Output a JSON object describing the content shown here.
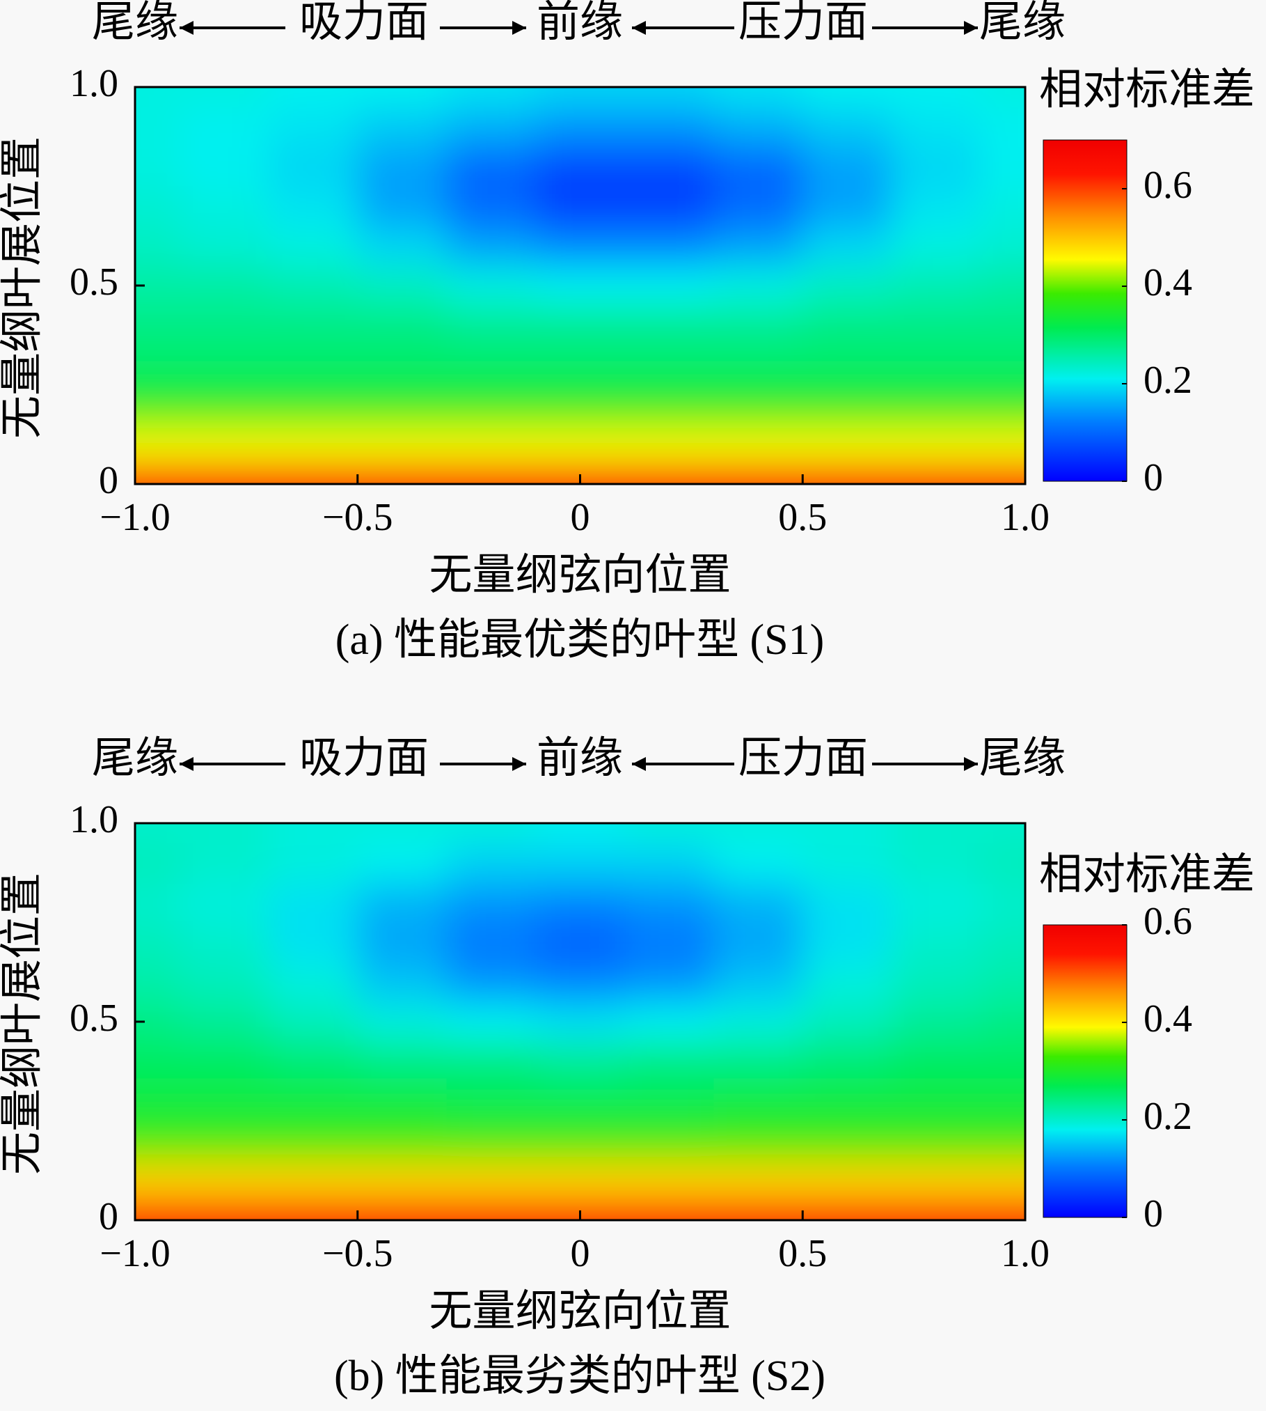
{
  "chart_data": [
    {
      "type": "heatmap",
      "title": "(a) 性能最优类的叶型 (S1)",
      "annotations": [
        "尾缘",
        "吸力面",
        "前缘",
        "压力面",
        "尾缘"
      ],
      "xlabel": "无量纲弦向位置",
      "ylabel": "无量纲叶展位置",
      "x": [
        -1,
        -0.8,
        -0.6,
        -0.4,
        -0.2,
        0,
        0.2,
        0.4,
        0.6,
        0.8,
        1
      ],
      "y": [
        0,
        0.1,
        0.2,
        0.3,
        0.4,
        0.5,
        0.6,
        0.7,
        0.8,
        0.9,
        1
      ],
      "z": [
        [
          0.62,
          0.62,
          0.62,
          0.62,
          0.62,
          0.62,
          0.62,
          0.62,
          0.62,
          0.62,
          0.62
        ],
        [
          0.45,
          0.45,
          0.45,
          0.45,
          0.45,
          0.45,
          0.45,
          0.45,
          0.45,
          0.45,
          0.45
        ],
        [
          0.36,
          0.36,
          0.36,
          0.36,
          0.36,
          0.36,
          0.36,
          0.36,
          0.36,
          0.36,
          0.36
        ],
        [
          0.3,
          0.3,
          0.3,
          0.3,
          0.3,
          0.3,
          0.3,
          0.3,
          0.3,
          0.3,
          0.3
        ],
        [
          0.28,
          0.28,
          0.28,
          0.28,
          0.27,
          0.27,
          0.27,
          0.27,
          0.28,
          0.28,
          0.28
        ],
        [
          0.26,
          0.26,
          0.25,
          0.24,
          0.22,
          0.21,
          0.21,
          0.22,
          0.24,
          0.25,
          0.26
        ],
        [
          0.24,
          0.23,
          0.22,
          0.19,
          0.15,
          0.13,
          0.13,
          0.15,
          0.19,
          0.22,
          0.23
        ],
        [
          0.23,
          0.22,
          0.2,
          0.15,
          0.1,
          0.06,
          0.06,
          0.1,
          0.15,
          0.2,
          0.22
        ],
        [
          0.22,
          0.21,
          0.19,
          0.15,
          0.1,
          0.07,
          0.07,
          0.1,
          0.15,
          0.19,
          0.21
        ],
        [
          0.22,
          0.21,
          0.2,
          0.18,
          0.16,
          0.14,
          0.14,
          0.16,
          0.18,
          0.2,
          0.21
        ],
        [
          0.22,
          0.22,
          0.21,
          0.21,
          0.2,
          0.19,
          0.19,
          0.2,
          0.21,
          0.21,
          0.22
        ]
      ],
      "xlim": [
        -1,
        1
      ],
      "ylim": [
        0,
        1
      ],
      "xticks": [
        {
          "value": -1,
          "label": "−1.0"
        },
        {
          "value": -0.5,
          "label": "−0.5"
        },
        0,
        0.5,
        {
          "value": 1,
          "label": "1.0"
        }
      ],
      "yticks": [
        0,
        0.5,
        {
          "value": 1,
          "label": "1.0"
        }
      ],
      "colormap": "jet",
      "colorbar": {
        "label": "相对标准差",
        "lim": [
          0,
          0.7
        ],
        "ticks": [
          0,
          0.2,
          0.4,
          0.6
        ]
      }
    },
    {
      "type": "heatmap",
      "title": "(b) 性能最劣类的叶型 (S2)",
      "annotations": [
        "尾缘",
        "吸力面",
        "前缘",
        "压力面",
        "尾缘"
      ],
      "xlabel": "无量纲弦向位置",
      "ylabel": "无量纲叶展位置",
      "x": [
        -1,
        -0.8,
        -0.6,
        -0.4,
        -0.2,
        0,
        0.2,
        0.4,
        0.6,
        0.8,
        1
      ],
      "y": [
        0,
        0.1,
        0.2,
        0.3,
        0.4,
        0.5,
        0.6,
        0.7,
        0.8,
        0.9,
        1
      ],
      "z": [
        [
          0.55,
          0.55,
          0.55,
          0.55,
          0.55,
          0.55,
          0.55,
          0.55,
          0.55,
          0.55,
          0.55
        ],
        [
          0.42,
          0.42,
          0.42,
          0.42,
          0.42,
          0.42,
          0.42,
          0.42,
          0.42,
          0.42,
          0.42
        ],
        [
          0.33,
          0.33,
          0.33,
          0.33,
          0.33,
          0.33,
          0.33,
          0.33,
          0.33,
          0.33,
          0.33
        ],
        [
          0.28,
          0.28,
          0.28,
          0.28,
          0.27,
          0.27,
          0.27,
          0.28,
          0.28,
          0.28,
          0.28
        ],
        [
          0.26,
          0.26,
          0.25,
          0.24,
          0.24,
          0.23,
          0.24,
          0.24,
          0.25,
          0.26,
          0.26
        ],
        [
          0.24,
          0.23,
          0.21,
          0.19,
          0.18,
          0.17,
          0.18,
          0.19,
          0.21,
          0.23,
          0.24
        ],
        [
          0.22,
          0.21,
          0.19,
          0.15,
          0.12,
          0.11,
          0.12,
          0.15,
          0.19,
          0.21,
          0.22
        ],
        [
          0.21,
          0.2,
          0.17,
          0.13,
          0.1,
          0.08,
          0.1,
          0.13,
          0.17,
          0.2,
          0.21
        ],
        [
          0.2,
          0.19,
          0.17,
          0.14,
          0.12,
          0.11,
          0.12,
          0.14,
          0.17,
          0.19,
          0.2
        ],
        [
          0.21,
          0.2,
          0.19,
          0.18,
          0.16,
          0.16,
          0.16,
          0.18,
          0.19,
          0.2,
          0.21
        ],
        [
          0.2,
          0.2,
          0.19,
          0.19,
          0.19,
          0.18,
          0.19,
          0.19,
          0.19,
          0.2,
          0.2
        ]
      ],
      "xlim": [
        -1,
        1
      ],
      "ylim": [
        0,
        1
      ],
      "xticks": [
        {
          "value": -1,
          "label": "−1.0"
        },
        {
          "value": -0.5,
          "label": "−0.5"
        },
        0,
        0.5,
        {
          "value": 1,
          "label": "1.0"
        }
      ],
      "yticks": [
        0,
        0.5,
        {
          "value": 1,
          "label": "1.0"
        }
      ],
      "colormap": "jet",
      "colorbar": {
        "label": "相对标准差",
        "lim": [
          0,
          0.6
        ],
        "ticks": [
          0,
          0.2,
          0.4,
          0.6
        ]
      }
    }
  ]
}
